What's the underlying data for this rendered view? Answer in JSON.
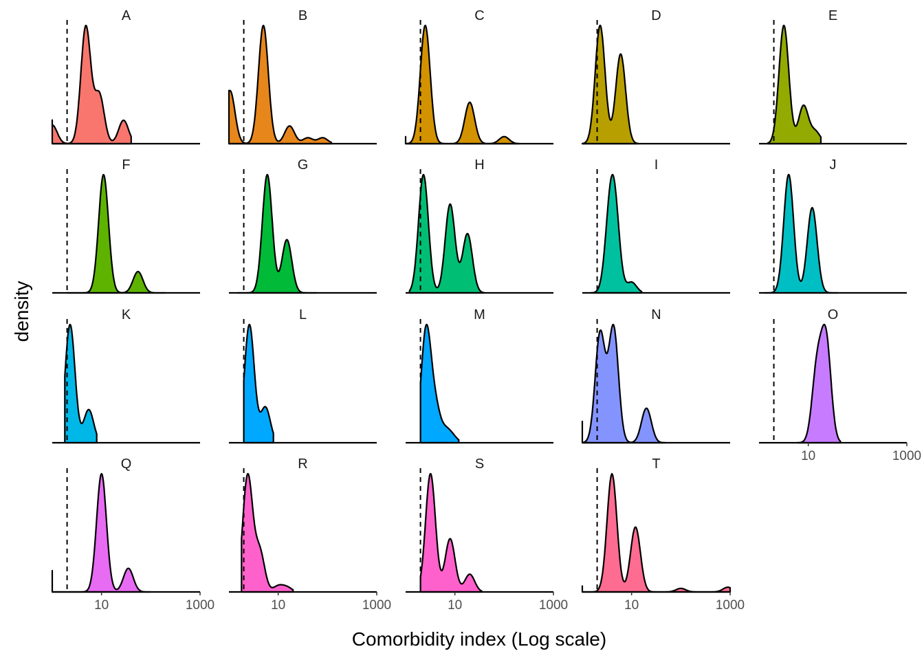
{
  "chart_data": {
    "type": "area",
    "subtype": "faceted density plot",
    "xlabel": "Comorbidity index (Log scale)",
    "ylabel": "density",
    "x_scale": "log10",
    "xlim": [
      1,
      1000
    ],
    "x_tick_labels": [
      "10",
      "1000"
    ],
    "reference_line": {
      "style": "dashed",
      "x": 2
    },
    "grid": false,
    "legend": "none",
    "facets": [
      {
        "label": "A",
        "color": "#F8766D",
        "peaks": [
          [
            1,
            0.16
          ],
          [
            4.8,
            1.0
          ],
          [
            9,
            0.42
          ],
          [
            28,
            0.2
          ]
        ],
        "range": [
          1,
          40
        ],
        "start_density": 0.2
      },
      {
        "label": "B",
        "color": "#E7861B",
        "peaks": [
          [
            1.05,
            0.45
          ],
          [
            5,
            1.0
          ],
          [
            17,
            0.15
          ],
          [
            40,
            0.05
          ],
          [
            80,
            0.05
          ]
        ],
        "range": [
          1,
          120
        ],
        "start_density": 0.45
      },
      {
        "label": "C",
        "color": "#D39200",
        "peaks": [
          [
            2.5,
            1.0
          ],
          [
            20,
            0.35
          ],
          [
            100,
            0.06
          ]
        ],
        "range": [
          1,
          200
        ],
        "start_density": 0.06
      },
      {
        "label": "D",
        "color": "#B79F00",
        "peaks": [
          [
            2.3,
            0.95
          ],
          [
            6,
            0.72
          ]
        ],
        "range": [
          1,
          14
        ],
        "start_density": 0
      },
      {
        "label": "E",
        "color": "#93AA00",
        "peaks": [
          [
            3.2,
            1.0
          ],
          [
            8,
            0.32
          ],
          [
            14,
            0.1
          ]
        ],
        "range": [
          1.5,
          18
        ],
        "start_density": 0
      },
      {
        "label": "F",
        "color": "#5EB300",
        "peaks": [
          [
            11,
            1.0
          ],
          [
            55,
            0.18
          ]
        ],
        "range": [
          2,
          200
        ],
        "start_density": 0
      },
      {
        "label": "G",
        "color": "#00BA38",
        "peaks": [
          [
            6,
            1.0
          ],
          [
            15,
            0.45
          ]
        ],
        "range": [
          1.5,
          60
        ],
        "start_density": 0
      },
      {
        "label": "H",
        "color": "#00BF74",
        "peaks": [
          [
            2.3,
            1.0
          ],
          [
            8,
            0.75
          ],
          [
            18,
            0.5
          ]
        ],
        "range": [
          1.2,
          40
        ],
        "start_density": 0
      },
      {
        "label": "I",
        "color": "#00C19F",
        "peaks": [
          [
            3.6,
            0.92
          ],
          [
            4.6,
            1.0
          ],
          [
            10,
            0.15
          ]
        ],
        "range": [
          1.5,
          16
        ],
        "start_density": 0
      },
      {
        "label": "J",
        "color": "#00BFC4",
        "peaks": [
          [
            4,
            1.0
          ],
          [
            12,
            0.72
          ]
        ],
        "range": [
          1.3,
          40
        ],
        "start_density": 0
      },
      {
        "label": "K",
        "color": "#00B8E7",
        "peaks": [
          [
            2.3,
            1.0
          ],
          [
            5.5,
            0.28
          ]
        ],
        "range": [
          1.8,
          8
        ],
        "start_density": 0
      },
      {
        "label": "L",
        "color": "#00A9FF",
        "peaks": [
          [
            2.6,
            1.0
          ],
          [
            5.5,
            0.3
          ]
        ],
        "range": [
          2,
          8
        ],
        "start_density": 0
      },
      {
        "label": "M",
        "color": "#00A9FF",
        "peaks": [
          [
            2.6,
            1.0
          ],
          [
            4,
            0.3
          ],
          [
            6.5,
            0.1
          ],
          [
            9,
            0.05
          ]
        ],
        "range": [
          2,
          12
        ],
        "start_density": 0
      },
      {
        "label": "N",
        "color": "#8494FF",
        "peaks": [
          [
            2.3,
            0.95
          ],
          [
            4.3,
            1.0
          ],
          [
            20,
            0.3
          ]
        ],
        "range": [
          1,
          50
        ],
        "start_density": 0.18
      },
      {
        "label": "O",
        "color": "#C77CFF",
        "peaks": [
          [
            15,
            0.72
          ],
          [
            23,
            1.0
          ]
        ],
        "range": [
          6,
          45
        ],
        "start_density": 0
      },
      {
        "label": "Q",
        "color": "#E76BF3",
        "peaks": [
          [
            10,
            1.0
          ],
          [
            35,
            0.2
          ]
        ],
        "range": [
          1,
          100
        ],
        "start_density": 0.18
      },
      {
        "label": "R",
        "color": "#FF61CC",
        "peaks": [
          [
            2.4,
            1.0
          ],
          [
            4.2,
            0.35
          ],
          [
            10,
            0.05
          ],
          [
            15,
            0.04
          ]
        ],
        "range": [
          1.8,
          20
        ],
        "start_density": 0
      },
      {
        "label": "S",
        "color": "#FF61CC",
        "peaks": [
          [
            3.2,
            1.0
          ],
          [
            8,
            0.45
          ],
          [
            20,
            0.15
          ]
        ],
        "range": [
          2,
          35
        ],
        "start_density": 0
      },
      {
        "label": "T",
        "color": "#FF6C91",
        "peaks": [
          [
            4,
            1.0
          ],
          [
            12,
            0.55
          ],
          [
            100,
            0.03
          ],
          [
            900,
            0.04
          ]
        ],
        "range": [
          1,
          1000
        ],
        "start_density": 0.05
      }
    ]
  }
}
